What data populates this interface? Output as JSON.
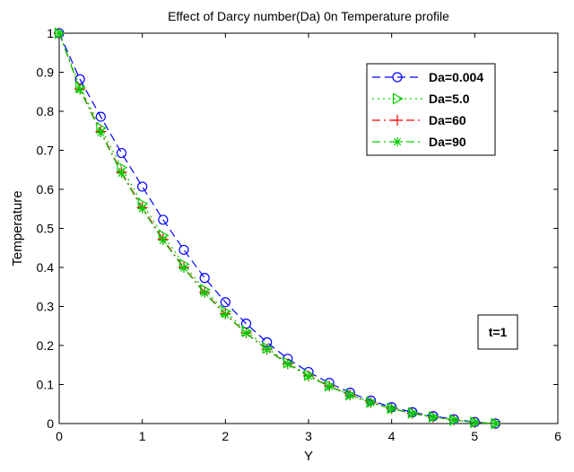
{
  "chart_data": {
    "type": "line",
    "title": "Effect of Darcy number(Da) 0n Temperature profile",
    "xlabel": "Y",
    "ylabel": "Temperature",
    "xlim": [
      0,
      6
    ],
    "ylim": [
      0,
      1
    ],
    "xticks": [
      0,
      1,
      2,
      3,
      4,
      5,
      6
    ],
    "yticks": [
      0,
      0.1,
      0.2,
      0.3,
      0.4,
      0.5,
      0.6,
      0.7,
      0.8,
      0.9,
      1
    ],
    "grid": false,
    "legend_position": "top-right",
    "x": [
      0,
      0.25,
      0.5,
      0.75,
      1.0,
      1.25,
      1.5,
      1.75,
      2.0,
      2.25,
      2.5,
      2.75,
      3.0,
      3.25,
      3.5,
      3.75,
      4.0,
      4.25,
      4.5,
      4.75,
      5.0,
      5.25
    ],
    "series": [
      {
        "name": "Da=0.004",
        "color": "#0000ff",
        "line_style": "dash",
        "marker": "circle",
        "values": [
          1.0,
          0.882,
          0.786,
          0.693,
          0.607,
          0.522,
          0.445,
          0.373,
          0.311,
          0.256,
          0.208,
          0.166,
          0.132,
          0.104,
          0.079,
          0.059,
          0.042,
          0.029,
          0.019,
          0.011,
          0.004,
          0.0
        ]
      },
      {
        "name": "Da=5.0",
        "color": "#00cc00",
        "line_style": "dot",
        "marker": "triangle-right",
        "values": [
          1.0,
          0.862,
          0.757,
          0.656,
          0.563,
          0.482,
          0.408,
          0.343,
          0.287,
          0.237,
          0.194,
          0.156,
          0.124,
          0.097,
          0.074,
          0.055,
          0.039,
          0.027,
          0.017,
          0.009,
          0.003,
          0.0
        ]
      },
      {
        "name": "Da=60",
        "color": "#ff0000",
        "line_style": "dashdot",
        "marker": "plus",
        "values": [
          1.0,
          0.857,
          0.748,
          0.644,
          0.553,
          0.472,
          0.4,
          0.336,
          0.281,
          0.232,
          0.19,
          0.153,
          0.122,
          0.096,
          0.073,
          0.054,
          0.038,
          0.026,
          0.016,
          0.009,
          0.003,
          0.0
        ]
      },
      {
        "name": "Da=90",
        "color": "#00cc00",
        "line_style": "dashdot",
        "marker": "asterisk",
        "values": [
          1.0,
          0.855,
          0.745,
          0.641,
          0.55,
          0.469,
          0.398,
          0.334,
          0.279,
          0.231,
          0.189,
          0.152,
          0.121,
          0.095,
          0.072,
          0.053,
          0.038,
          0.026,
          0.016,
          0.009,
          0.003,
          0.0
        ]
      }
    ],
    "annotation": "t=1"
  }
}
